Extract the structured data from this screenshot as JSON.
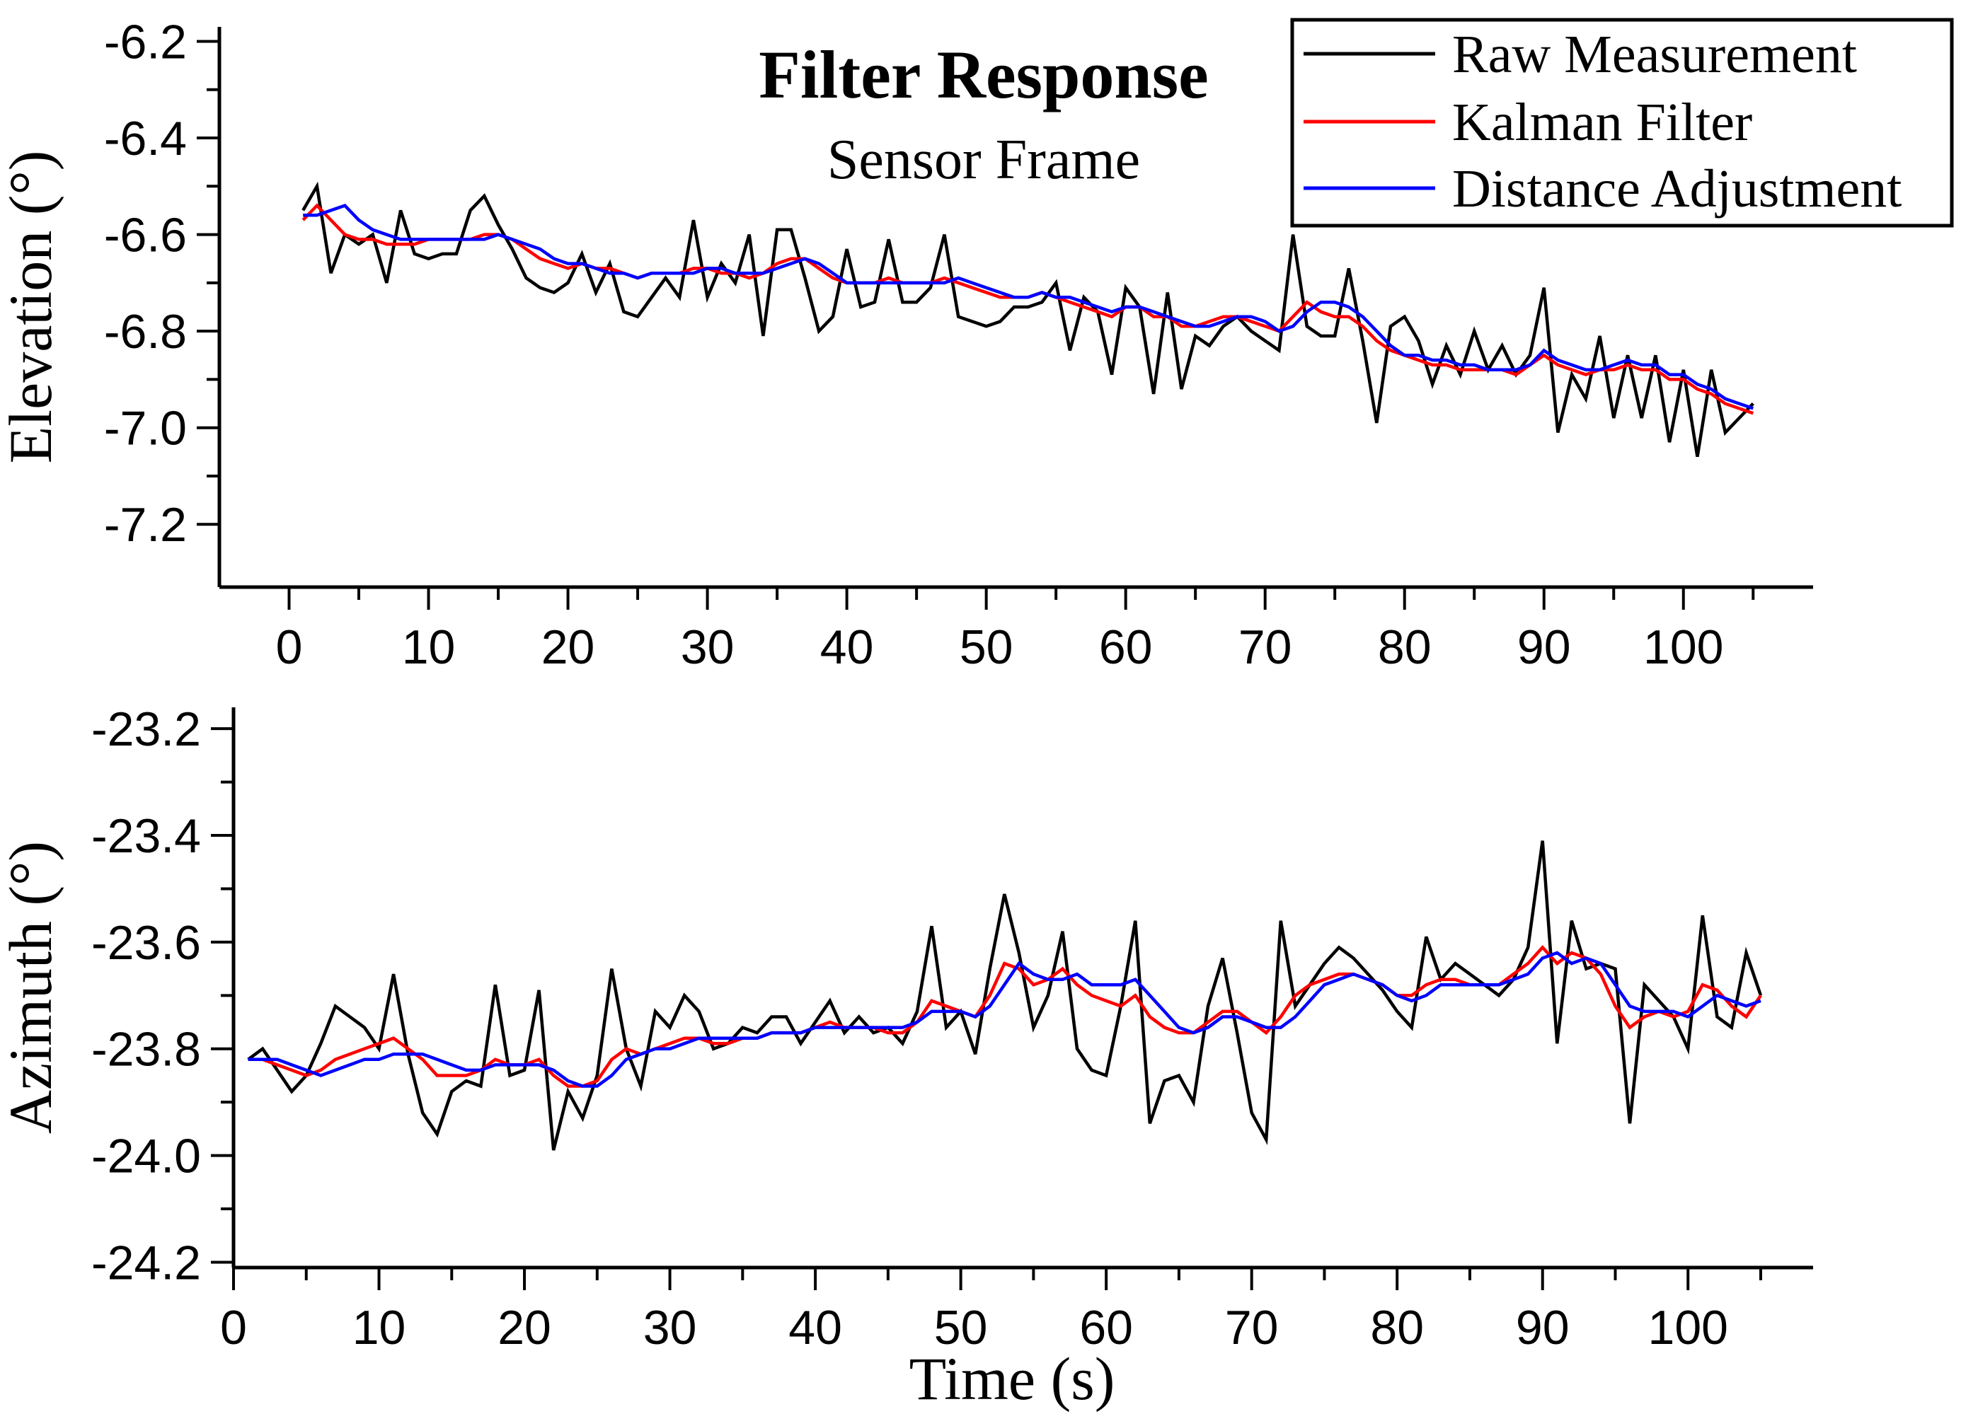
{
  "title": "Filter Response",
  "subtitle": "Sensor Frame",
  "colors": {
    "raw": "#000000",
    "kalman": "#ff0000",
    "distance": "#0000ff",
    "axis": "#000000"
  },
  "legend": {
    "entries": [
      {
        "label": "Raw Measurement",
        "color": "#000000"
      },
      {
        "label": "Kalman Filter",
        "color": "#ff0000"
      },
      {
        "label": "Distance Adjustment",
        "color": "#0000ff"
      }
    ]
  },
  "chart_data": [
    {
      "type": "line",
      "title": "Filter Response",
      "subtitle": "Sensor Frame",
      "ylabel": "Elevation (°)",
      "xlabel": "Time (s)",
      "xlim": [
        -5.0,
        109.3
      ],
      "ylim": [
        -7.33,
        -6.17
      ],
      "grid": false,
      "xticks": {
        "values": [
          0,
          10,
          20,
          30,
          40,
          50,
          60,
          70,
          80,
          90,
          100
        ],
        "labels": [
          "0",
          "10",
          "20",
          "30",
          "40",
          "50",
          "60",
          "70",
          "80",
          "90",
          "100"
        ]
      },
      "xminor": [
        5,
        15,
        25,
        35,
        45,
        55,
        65,
        75,
        85,
        95,
        105
      ],
      "yticks": {
        "values": [
          -6.2,
          -6.4,
          -6.6,
          -6.8,
          -7.0,
          -7.2
        ],
        "labels": [
          "-6.2",
          "-6.4",
          "-6.6",
          "-6.8",
          "-7.0",
          "-7.2"
        ]
      },
      "yminor": [
        -6.3,
        -6.5,
        -6.7,
        -6.9,
        -7.1
      ],
      "x_start": 1,
      "x_step": 1,
      "series": [
        {
          "name": "Raw Measurement",
          "color": "#000000",
          "values": [
            -6.55,
            -6.5,
            -6.68,
            -6.6,
            -6.62,
            -6.6,
            -6.7,
            -6.55,
            -6.64,
            -6.65,
            -6.64,
            -6.64,
            -6.55,
            -6.52,
            -6.58,
            -6.63,
            -6.69,
            -6.71,
            -6.72,
            -6.7,
            -6.64,
            -6.72,
            -6.66,
            -6.76,
            -6.77,
            -6.73,
            -6.69,
            -6.73,
            -6.57,
            -6.73,
            -6.66,
            -6.7,
            -6.6,
            -6.81,
            -6.59,
            -6.59,
            -6.69,
            -6.8,
            -6.77,
            -6.63,
            -6.75,
            -6.74,
            -6.61,
            -6.74,
            -6.74,
            -6.71,
            -6.6,
            -6.77,
            -6.78,
            -6.79,
            -6.78,
            -6.75,
            -6.75,
            -6.74,
            -6.7,
            -6.84,
            -6.73,
            -6.76,
            -6.89,
            -6.71,
            -6.75,
            -6.93,
            -6.72,
            -6.92,
            -6.81,
            -6.83,
            -6.79,
            -6.77,
            -6.8,
            -6.82,
            -6.84,
            -6.6,
            -6.79,
            -6.81,
            -6.81,
            -6.67,
            -6.82,
            -6.99,
            -6.79,
            -6.77,
            -6.82,
            -6.91,
            -6.83,
            -6.89,
            -6.8,
            -6.88,
            -6.83,
            -6.89,
            -6.85,
            -6.71,
            -7.01,
            -6.89,
            -6.94,
            -6.81,
            -6.98,
            -6.85,
            -6.98,
            -6.85,
            -7.03,
            -6.88,
            -7.06,
            -6.88,
            -7.01,
            -6.98,
            -6.95
          ]
        },
        {
          "name": "Kalman Filter",
          "color": "#ff0000",
          "values": [
            -6.57,
            -6.54,
            -6.57,
            -6.6,
            -6.61,
            -6.61,
            -6.62,
            -6.62,
            -6.62,
            -6.61,
            -6.61,
            -6.61,
            -6.61,
            -6.6,
            -6.6,
            -6.61,
            -6.63,
            -6.65,
            -6.66,
            -6.67,
            -6.66,
            -6.67,
            -6.67,
            -6.68,
            -6.69,
            -6.68,
            -6.68,
            -6.68,
            -6.67,
            -6.67,
            -6.68,
            -6.68,
            -6.69,
            -6.68,
            -6.66,
            -6.65,
            -6.65,
            -6.67,
            -6.69,
            -6.7,
            -6.7,
            -6.7,
            -6.69,
            -6.7,
            -6.7,
            -6.7,
            -6.69,
            -6.7,
            -6.71,
            -6.72,
            -6.73,
            -6.73,
            -6.73,
            -6.72,
            -6.73,
            -6.74,
            -6.75,
            -6.76,
            -6.77,
            -6.75,
            -6.75,
            -6.77,
            -6.77,
            -6.79,
            -6.79,
            -6.78,
            -6.77,
            -6.77,
            -6.78,
            -6.79,
            -6.8,
            -6.77,
            -6.74,
            -6.76,
            -6.77,
            -6.77,
            -6.79,
            -6.82,
            -6.84,
            -6.85,
            -6.86,
            -6.87,
            -6.87,
            -6.88,
            -6.88,
            -6.88,
            -6.88,
            -6.89,
            -6.87,
            -6.85,
            -6.87,
            -6.88,
            -6.89,
            -6.88,
            -6.88,
            -6.87,
            -6.88,
            -6.88,
            -6.9,
            -6.9,
            -6.92,
            -6.93,
            -6.95,
            -6.96,
            -6.97
          ]
        },
        {
          "name": "Distance Adjustment",
          "color": "#0000ff",
          "values": [
            -6.56,
            -6.56,
            -6.55,
            -6.54,
            -6.57,
            -6.59,
            -6.6,
            -6.61,
            -6.61,
            -6.61,
            -6.61,
            -6.61,
            -6.61,
            -6.61,
            -6.6,
            -6.61,
            -6.62,
            -6.63,
            -6.65,
            -6.66,
            -6.66,
            -6.67,
            -6.68,
            -6.68,
            -6.69,
            -6.68,
            -6.68,
            -6.68,
            -6.68,
            -6.67,
            -6.67,
            -6.68,
            -6.68,
            -6.68,
            -6.67,
            -6.66,
            -6.65,
            -6.66,
            -6.68,
            -6.7,
            -6.7,
            -6.7,
            -6.7,
            -6.7,
            -6.7,
            -6.7,
            -6.7,
            -6.69,
            -6.7,
            -6.71,
            -6.72,
            -6.73,
            -6.73,
            -6.72,
            -6.73,
            -6.73,
            -6.74,
            -6.75,
            -6.76,
            -6.75,
            -6.75,
            -6.76,
            -6.77,
            -6.78,
            -6.79,
            -6.79,
            -6.78,
            -6.77,
            -6.77,
            -6.78,
            -6.8,
            -6.79,
            -6.76,
            -6.74,
            -6.74,
            -6.75,
            -6.77,
            -6.8,
            -6.83,
            -6.85,
            -6.85,
            -6.86,
            -6.86,
            -6.87,
            -6.87,
            -6.88,
            -6.88,
            -6.88,
            -6.87,
            -6.84,
            -6.86,
            -6.87,
            -6.88,
            -6.88,
            -6.87,
            -6.86,
            -6.87,
            -6.87,
            -6.89,
            -6.89,
            -6.91,
            -6.92,
            -6.94,
            -6.95,
            -6.96
          ]
        }
      ]
    },
    {
      "type": "line",
      "ylabel": "Azimuth (°)",
      "xlabel": "Time (s)",
      "xlim": [
        0.0,
        108.6
      ],
      "ylim": [
        -24.21,
        -23.16
      ],
      "grid": false,
      "xticks": {
        "values": [
          0,
          10,
          20,
          30,
          40,
          50,
          60,
          70,
          80,
          90,
          100
        ],
        "labels": [
          "0",
          "10",
          "20",
          "30",
          "40",
          "50",
          "60",
          "70",
          "80",
          "90",
          "100"
        ]
      },
      "xminor": [
        5,
        15,
        25,
        35,
        45,
        55,
        65,
        75,
        85,
        95,
        105
      ],
      "yticks": {
        "values": [
          -23.2,
          -23.4,
          -23.6,
          -23.8,
          -24.0,
          -24.2
        ],
        "labels": [
          "-23.2",
          "-23.4",
          "-23.6",
          "-23.8",
          "-24.0",
          "-24.2"
        ]
      },
      "yminor": [
        -23.3,
        -23.5,
        -23.7,
        -23.9,
        -24.1
      ],
      "x_start": 1,
      "x_step": 1,
      "series": [
        {
          "name": "Raw Measurement",
          "color": "#000000",
          "values": [
            -23.82,
            -23.8,
            -23.84,
            -23.88,
            -23.85,
            -23.79,
            -23.72,
            -23.74,
            -23.76,
            -23.8,
            -23.66,
            -23.81,
            -23.92,
            -23.96,
            -23.88,
            -23.86,
            -23.87,
            -23.68,
            -23.85,
            -23.84,
            -23.69,
            -23.99,
            -23.88,
            -23.93,
            -23.85,
            -23.65,
            -23.8,
            -23.87,
            -23.73,
            -23.76,
            -23.7,
            -23.73,
            -23.8,
            -23.79,
            -23.76,
            -23.77,
            -23.74,
            -23.74,
            -23.79,
            -23.75,
            -23.71,
            -23.77,
            -23.74,
            -23.77,
            -23.76,
            -23.79,
            -23.73,
            -23.57,
            -23.76,
            -23.73,
            -23.81,
            -23.65,
            -23.51,
            -23.62,
            -23.76,
            -23.7,
            -23.58,
            -23.8,
            -23.84,
            -23.85,
            -23.72,
            -23.56,
            -23.94,
            -23.86,
            -23.85,
            -23.9,
            -23.72,
            -23.63,
            -23.77,
            -23.92,
            -23.97,
            -23.56,
            -23.72,
            -23.68,
            -23.64,
            -23.61,
            -23.63,
            -23.66,
            -23.69,
            -23.73,
            -23.76,
            -23.59,
            -23.67,
            -23.64,
            -23.66,
            -23.68,
            -23.7,
            -23.67,
            -23.61,
            -23.41,
            -23.79,
            -23.56,
            -23.65,
            -23.64,
            -23.65,
            -23.94,
            -23.68,
            -23.71,
            -23.74,
            -23.8,
            -23.55,
            -23.74,
            -23.76,
            -23.62,
            -23.7
          ]
        },
        {
          "name": "Kalman Filter",
          "color": "#ff0000",
          "values": [
            -23.82,
            -23.82,
            -23.83,
            -23.84,
            -23.85,
            -23.84,
            -23.82,
            -23.81,
            -23.8,
            -23.79,
            -23.78,
            -23.8,
            -23.82,
            -23.85,
            -23.85,
            -23.85,
            -23.84,
            -23.82,
            -23.83,
            -23.83,
            -23.82,
            -23.85,
            -23.87,
            -23.87,
            -23.86,
            -23.82,
            -23.8,
            -23.81,
            -23.8,
            -23.79,
            -23.78,
            -23.78,
            -23.79,
            -23.79,
            -23.78,
            -23.78,
            -23.77,
            -23.77,
            -23.77,
            -23.76,
            -23.75,
            -23.76,
            -23.76,
            -23.76,
            -23.77,
            -23.77,
            -23.75,
            -23.71,
            -23.72,
            -23.73,
            -23.74,
            -23.7,
            -23.64,
            -23.65,
            -23.68,
            -23.67,
            -23.65,
            -23.68,
            -23.7,
            -23.71,
            -23.72,
            -23.7,
            -23.74,
            -23.76,
            -23.77,
            -23.77,
            -23.75,
            -23.73,
            -23.73,
            -23.75,
            -23.77,
            -23.74,
            -23.7,
            -23.68,
            -23.67,
            -23.66,
            -23.66,
            -23.67,
            -23.68,
            -23.7,
            -23.7,
            -23.68,
            -23.67,
            -23.67,
            -23.68,
            -23.68,
            -23.68,
            -23.66,
            -23.64,
            -23.61,
            -23.64,
            -23.62,
            -23.63,
            -23.66,
            -23.72,
            -23.76,
            -23.74,
            -23.73,
            -23.74,
            -23.73,
            -23.68,
            -23.69,
            -23.72,
            -23.74,
            -23.7
          ]
        },
        {
          "name": "Distance Adjustment",
          "color": "#0000ff",
          "values": [
            -23.82,
            -23.82,
            -23.82,
            -23.83,
            -23.84,
            -23.85,
            -23.84,
            -23.83,
            -23.82,
            -23.82,
            -23.81,
            -23.81,
            -23.81,
            -23.82,
            -23.83,
            -23.84,
            -23.84,
            -23.83,
            -23.83,
            -23.83,
            -23.83,
            -23.84,
            -23.86,
            -23.87,
            -23.87,
            -23.85,
            -23.82,
            -23.81,
            -23.8,
            -23.8,
            -23.79,
            -23.78,
            -23.78,
            -23.78,
            -23.78,
            -23.78,
            -23.77,
            -23.77,
            -23.77,
            -23.76,
            -23.76,
            -23.76,
            -23.76,
            -23.76,
            -23.76,
            -23.76,
            -23.75,
            -23.73,
            -23.73,
            -23.73,
            -23.74,
            -23.72,
            -23.68,
            -23.64,
            -23.66,
            -23.67,
            -23.67,
            -23.66,
            -23.68,
            -23.68,
            -23.68,
            -23.67,
            -23.7,
            -23.73,
            -23.76,
            -23.77,
            -23.76,
            -23.74,
            -23.74,
            -23.75,
            -23.76,
            -23.76,
            -23.74,
            -23.71,
            -23.68,
            -23.67,
            -23.66,
            -23.67,
            -23.68,
            -23.7,
            -23.71,
            -23.7,
            -23.68,
            -23.68,
            -23.68,
            -23.68,
            -23.68,
            -23.67,
            -23.66,
            -23.63,
            -23.62,
            -23.64,
            -23.63,
            -23.64,
            -23.68,
            -23.72,
            -23.73,
            -23.73,
            -23.73,
            -23.74,
            -23.72,
            -23.7,
            -23.71,
            -23.72,
            -23.71
          ]
        }
      ]
    }
  ]
}
